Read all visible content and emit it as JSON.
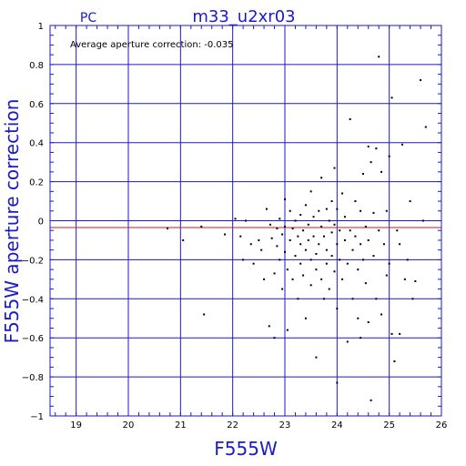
{
  "chart_data": {
    "type": "scatter",
    "panel_label": "PC",
    "title": "m33_u2xr03",
    "xlabel": "F555W",
    "ylabel": "F555W aperture correction",
    "annotation": "Average aperture correction: -0.035",
    "average_correction": -0.035,
    "xlim": [
      18.5,
      26.0
    ],
    "ylim": [
      -1.0,
      1.0
    ],
    "x_ticks": [
      19,
      20,
      21,
      22,
      23,
      24,
      25,
      26
    ],
    "y_ticks": [
      -1,
      -0.8,
      -0.6,
      -0.4,
      -0.2,
      0,
      0.2,
      0.4,
      0.6,
      0.8,
      1
    ],
    "x_tick_labels": [
      "19",
      "20",
      "21",
      "22",
      "23",
      "24",
      "25",
      "26"
    ],
    "y_tick_labels": [
      "−1",
      "−0.8",
      "−0.6",
      "−0.4",
      "−0.2",
      "0",
      "0.2",
      "0.4",
      "0.6",
      "0.8",
      "1"
    ],
    "grid": true,
    "colors": {
      "frame": "#1a1ac8",
      "grid": "#1a1ac8",
      "points": "#000000",
      "average_line": "#c81e1e"
    },
    "points": [
      [
        20.75,
        -0.04
      ],
      [
        21.05,
        -0.1
      ],
      [
        21.4,
        -0.03
      ],
      [
        21.45,
        -0.48
      ],
      [
        21.85,
        -0.07
      ],
      [
        22.05,
        0.01
      ],
      [
        22.15,
        -0.08
      ],
      [
        22.2,
        -0.2
      ],
      [
        22.25,
        0.0
      ],
      [
        22.35,
        -0.12
      ],
      [
        22.4,
        -0.22
      ],
      [
        22.5,
        -0.1
      ],
      [
        22.55,
        -0.15
      ],
      [
        22.6,
        -0.3
      ],
      [
        22.65,
        0.06
      ],
      [
        22.7,
        -0.54
      ],
      [
        22.72,
        -0.02
      ],
      [
        22.75,
        -0.09
      ],
      [
        22.8,
        -0.27
      ],
      [
        22.8,
        -0.6
      ],
      [
        22.85,
        -0.04
      ],
      [
        22.85,
        -0.13
      ],
      [
        22.9,
        0.01
      ],
      [
        22.9,
        -0.2
      ],
      [
        22.95,
        -0.07
      ],
      [
        22.95,
        -0.35
      ],
      [
        23.0,
        0.11
      ],
      [
        23.0,
        -0.03
      ],
      [
        23.0,
        -0.16
      ],
      [
        23.05,
        -0.25
      ],
      [
        23.05,
        -0.56
      ],
      [
        23.1,
        0.05
      ],
      [
        23.1,
        -0.1
      ],
      [
        23.15,
        -0.04
      ],
      [
        23.15,
        -0.3
      ],
      [
        23.2,
        0.0
      ],
      [
        23.2,
        -0.18
      ],
      [
        23.25,
        -0.08
      ],
      [
        23.25,
        -0.4
      ],
      [
        23.3,
        0.03
      ],
      [
        23.3,
        -0.12
      ],
      [
        23.3,
        -0.22
      ],
      [
        23.35,
        -0.05
      ],
      [
        23.35,
        -0.28
      ],
      [
        23.4,
        0.08
      ],
      [
        23.4,
        -0.15
      ],
      [
        23.4,
        -0.5
      ],
      [
        23.45,
        -0.02
      ],
      [
        23.45,
        -0.1
      ],
      [
        23.5,
        0.15
      ],
      [
        23.5,
        -0.2
      ],
      [
        23.5,
        -0.33
      ],
      [
        23.55,
        0.02
      ],
      [
        23.55,
        -0.08
      ],
      [
        23.6,
        -0.17
      ],
      [
        23.6,
        -0.25
      ],
      [
        23.6,
        -0.7
      ],
      [
        23.65,
        0.05
      ],
      [
        23.65,
        -0.12
      ],
      [
        23.7,
        0.22
      ],
      [
        23.7,
        -0.03
      ],
      [
        23.7,
        -0.3
      ],
      [
        23.75,
        -0.08
      ],
      [
        23.75,
        -0.4
      ],
      [
        23.8,
        0.06
      ],
      [
        23.8,
        -0.15
      ],
      [
        23.8,
        -0.22
      ],
      [
        23.85,
        0.0
      ],
      [
        23.85,
        -0.35
      ],
      [
        23.9,
        0.1
      ],
      [
        23.9,
        -0.06
      ],
      [
        23.9,
        -0.18
      ],
      [
        23.95,
        0.27
      ],
      [
        23.95,
        -0.02
      ],
      [
        23.95,
        -0.26
      ],
      [
        24.0,
        0.06
      ],
      [
        24.0,
        -0.12
      ],
      [
        24.0,
        -0.45
      ],
      [
        24.0,
        -0.83
      ],
      [
        24.05,
        -0.05
      ],
      [
        24.05,
        -0.2
      ],
      [
        24.1,
        0.14
      ],
      [
        24.1,
        -0.3
      ],
      [
        24.15,
        0.02
      ],
      [
        24.15,
        -0.1
      ],
      [
        24.2,
        -0.22
      ],
      [
        24.2,
        -0.62
      ],
      [
        24.25,
        0.52
      ],
      [
        24.25,
        -0.05
      ],
      [
        24.3,
        -0.15
      ],
      [
        24.3,
        -0.4
      ],
      [
        24.35,
        0.1
      ],
      [
        24.35,
        -0.08
      ],
      [
        24.4,
        -0.25
      ],
      [
        24.4,
        -0.5
      ],
      [
        24.45,
        0.05
      ],
      [
        24.45,
        -0.12
      ],
      [
        24.45,
        -0.6
      ],
      [
        24.5,
        0.24
      ],
      [
        24.5,
        -0.2
      ],
      [
        24.55,
        -0.03
      ],
      [
        24.55,
        -0.32
      ],
      [
        24.6,
        0.38
      ],
      [
        24.6,
        -0.1
      ],
      [
        24.6,
        -0.52
      ],
      [
        24.65,
        0.3
      ],
      [
        24.65,
        -0.92
      ],
      [
        24.7,
        0.04
      ],
      [
        24.7,
        -0.18
      ],
      [
        24.75,
        0.37
      ],
      [
        24.75,
        -0.4
      ],
      [
        24.8,
        0.84
      ],
      [
        24.8,
        -0.05
      ],
      [
        24.85,
        0.25
      ],
      [
        24.85,
        -0.48
      ],
      [
        24.9,
        -0.12
      ],
      [
        24.95,
        0.05
      ],
      [
        24.95,
        -0.28
      ],
      [
        25.0,
        0.33
      ],
      [
        25.0,
        -0.22
      ],
      [
        25.05,
        0.63
      ],
      [
        25.05,
        -0.58
      ],
      [
        25.1,
        -0.72
      ],
      [
        25.15,
        -0.05
      ],
      [
        25.25,
        0.39
      ],
      [
        25.2,
        -0.12
      ],
      [
        25.3,
        -0.3
      ],
      [
        25.35,
        -0.2
      ],
      [
        25.4,
        0.1
      ],
      [
        25.45,
        -0.4
      ],
      [
        25.5,
        -0.31
      ],
      [
        25.6,
        0.72
      ],
      [
        25.65,
        0.0
      ],
      [
        25.7,
        0.48
      ],
      [
        25.2,
        -0.58
      ]
    ]
  }
}
